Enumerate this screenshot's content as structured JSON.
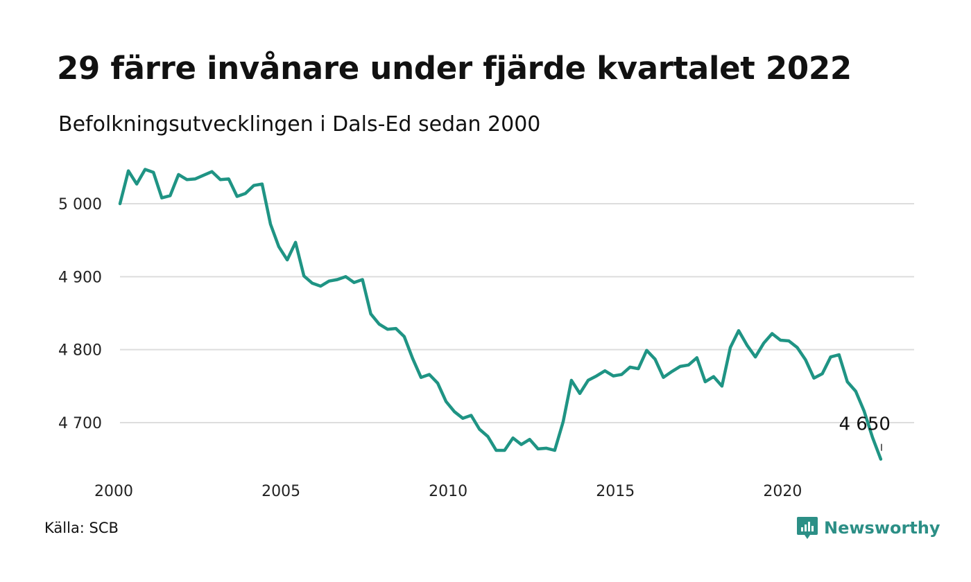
{
  "title": "29 färre invånare under fjärde kvartalet 2022",
  "subtitle": "Befolkningsutvecklingen i Dals-Ed sedan 2000",
  "source": "Källa: SCB",
  "brand": {
    "name": "Newsworthy",
    "icon": "newsworthy-logo-icon",
    "color": "#2c8f86"
  },
  "colors": {
    "line": "#1f9484",
    "grid": "#dddddd"
  },
  "chart_data": {
    "type": "line",
    "title": "29 färre invånare under fjärde kvartalet 2022",
    "subtitle": "Befolkningsutvecklingen i Dals-Ed sedan 2000",
    "xlabel": "",
    "ylabel": "",
    "xlim": [
      2000,
      2023
    ],
    "ylim": [
      4640,
      5050
    ],
    "grid": "horizontal",
    "x_ticks": [
      2000,
      2005,
      2010,
      2015,
      2020
    ],
    "x_tick_labels": [
      "2000",
      "2005",
      "2010",
      "2015",
      "2020"
    ],
    "y_ticks": [
      4700,
      4800,
      4900,
      5000
    ],
    "y_tick_labels": [
      "4 700",
      "4 800",
      "4 900",
      "5 000"
    ],
    "end_label": "4 650",
    "series": [
      {
        "x": [
          2000.0,
          2000.25,
          2000.5,
          2000.75,
          2001.0,
          2001.25,
          2001.5,
          2001.75,
          2002.0,
          2002.25,
          2002.5,
          2002.75,
          2003.0,
          2003.25,
          2003.5,
          2003.75,
          2004.0,
          2004.25,
          2004.5,
          2004.75,
          2005.0,
          2005.25,
          2005.5,
          2005.75,
          2006.0,
          2006.25,
          2006.5,
          2006.75,
          2007.0,
          2007.25,
          2007.5,
          2007.75,
          2008.0,
          2008.25,
          2008.5,
          2008.75,
          2009.0,
          2009.25,
          2009.5,
          2009.75,
          2010.0,
          2010.25,
          2010.5,
          2010.75,
          2011.0,
          2011.25,
          2011.5,
          2011.75,
          2012.0,
          2012.25,
          2012.5,
          2012.75,
          2013.0,
          2013.25,
          2013.5,
          2013.75,
          2014.0,
          2014.25,
          2014.5,
          2014.75,
          2015.0,
          2015.25,
          2015.5,
          2015.75,
          2016.0,
          2016.25,
          2016.5,
          2016.75,
          2017.0,
          2017.25,
          2017.5,
          2017.75,
          2018.0,
          2018.25,
          2018.5,
          2018.75,
          2019.0,
          2019.25,
          2019.5,
          2019.75,
          2020.0,
          2020.25,
          2020.5,
          2020.75,
          2021.0,
          2021.25,
          2021.5,
          2021.75,
          2022.0,
          2022.25,
          2022.5,
          2022.75
        ],
        "values": [
          5000,
          5045,
          5027,
          5047,
          5043,
          5008,
          5011,
          5040,
          5033,
          5034,
          5039,
          5044,
          5033,
          5034,
          5010,
          5014,
          5025,
          5027,
          4972,
          4941,
          4923,
          4947,
          4901,
          4891,
          4887,
          4894,
          4896,
          4900,
          4892,
          4896,
          4849,
          4835,
          4828,
          4829,
          4818,
          4788,
          4762,
          4766,
          4754,
          4729,
          4715,
          4706,
          4710,
          4691,
          4681,
          4662,
          4662,
          4679,
          4670,
          4677,
          4664,
          4665,
          4662,
          4701,
          4758,
          4740,
          4758,
          4764,
          4771,
          4764,
          4766,
          4776,
          4774,
          4799,
          4787,
          4762,
          4770,
          4777,
          4779,
          4789,
          4756,
          4763,
          4750,
          4803,
          4826,
          4806,
          4790,
          4809,
          4822,
          4813,
          4812,
          4803,
          4786,
          4761,
          4767,
          4790,
          4793,
          4756,
          4743,
          4716,
          4680,
          4650
        ]
      }
    ]
  }
}
